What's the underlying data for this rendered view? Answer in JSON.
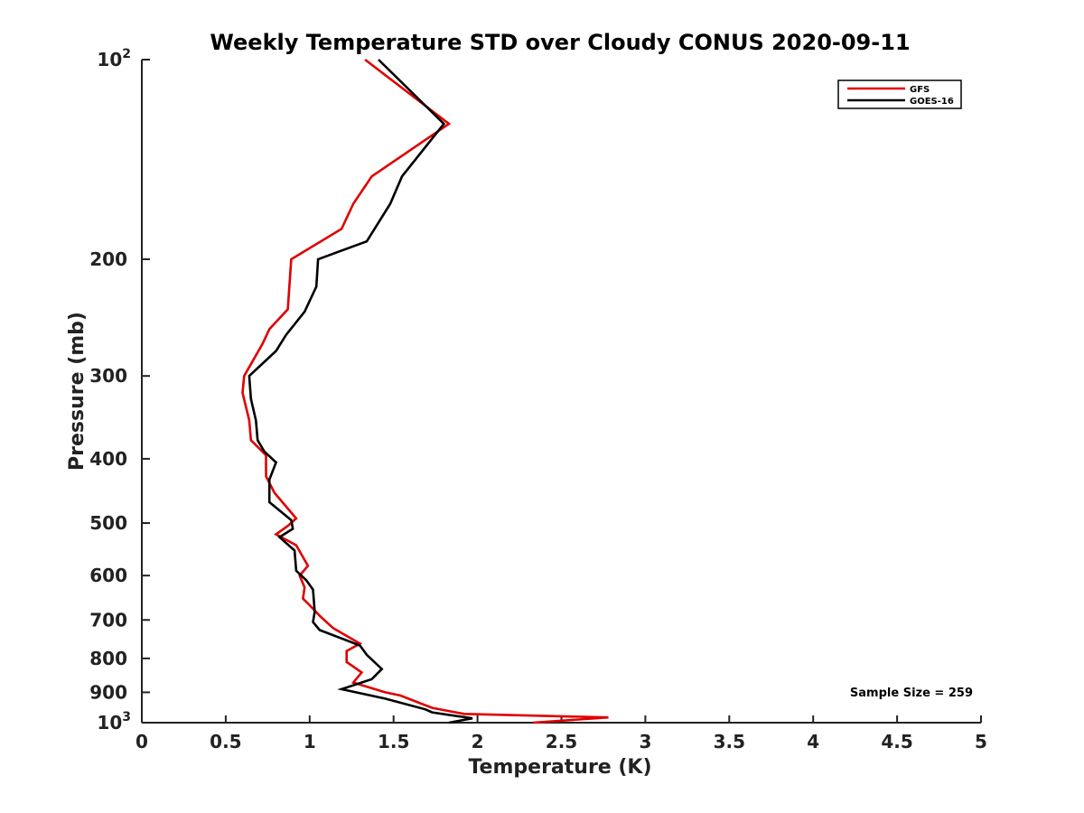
{
  "chart_data": {
    "type": "line",
    "title": "Weekly Temperature STD over Cloudy CONUS 2020-09-11",
    "xlabel": "Temperature (K)",
    "ylabel": "Pressure (mb)",
    "xlim": [
      0,
      5
    ],
    "ylim": [
      1000,
      100
    ],
    "yscale": "log",
    "grid": false,
    "legend_position": "top-right",
    "x_ticks": [
      0,
      0.5,
      1,
      1.5,
      2,
      2.5,
      3,
      3.5,
      4,
      4.5,
      5
    ],
    "x_tick_labels": [
      "0",
      "0.5",
      "1",
      "1.5",
      "2",
      "2.5",
      "3",
      "3.5",
      "4",
      "4.5",
      "5"
    ],
    "y_ticks": [
      {
        "value": 100,
        "base": "10",
        "exp": "2"
      },
      {
        "value": 200,
        "label": "200"
      },
      {
        "value": 300,
        "label": "300"
      },
      {
        "value": 400,
        "label": "400"
      },
      {
        "value": 500,
        "label": "500"
      },
      {
        "value": 600,
        "label": "600"
      },
      {
        "value": 700,
        "label": "700"
      },
      {
        "value": 800,
        "label": "800"
      },
      {
        "value": 900,
        "label": "900"
      },
      {
        "value": 1000,
        "base": "10",
        "exp": "3"
      }
    ],
    "annotation": "Sample Size = 259",
    "series": [
      {
        "name": "GFS",
        "color": "#e00000",
        "points": [
          [
            1.33,
            100
          ],
          [
            1.83,
            125
          ],
          [
            1.37,
            150
          ],
          [
            1.26,
            165
          ],
          [
            1.19,
            180
          ],
          [
            0.89,
            200
          ],
          [
            0.87,
            238
          ],
          [
            0.76,
            255
          ],
          [
            0.72,
            268
          ],
          [
            0.61,
            300
          ],
          [
            0.6,
            318
          ],
          [
            0.64,
            350
          ],
          [
            0.65,
            375
          ],
          [
            0.74,
            395
          ],
          [
            0.74,
            425
          ],
          [
            0.79,
            450
          ],
          [
            0.92,
            492
          ],
          [
            0.87,
            505
          ],
          [
            0.8,
            520
          ],
          [
            0.92,
            540
          ],
          [
            0.99,
            580
          ],
          [
            0.94,
            600
          ],
          [
            0.97,
            625
          ],
          [
            0.96,
            650
          ],
          [
            1.0,
            665
          ],
          [
            1.06,
            690
          ],
          [
            1.14,
            720
          ],
          [
            1.3,
            760
          ],
          [
            1.22,
            780
          ],
          [
            1.22,
            810
          ],
          [
            1.31,
            840
          ],
          [
            1.26,
            870
          ],
          [
            1.45,
            900
          ],
          [
            1.54,
            910
          ],
          [
            1.73,
            950
          ],
          [
            1.92,
            970
          ],
          [
            2.78,
            982
          ],
          [
            2.33,
            1000
          ]
        ]
      },
      {
        "name": "GOES-16",
        "color": "#000000",
        "points": [
          [
            1.41,
            100
          ],
          [
            1.8,
            125
          ],
          [
            1.55,
            150
          ],
          [
            1.48,
            165
          ],
          [
            1.34,
            188
          ],
          [
            1.05,
            200
          ],
          [
            1.04,
            220
          ],
          [
            0.97,
            240
          ],
          [
            0.86,
            260
          ],
          [
            0.8,
            275
          ],
          [
            0.64,
            300
          ],
          [
            0.65,
            325
          ],
          [
            0.68,
            350
          ],
          [
            0.69,
            375
          ],
          [
            0.73,
            390
          ],
          [
            0.8,
            405
          ],
          [
            0.76,
            430
          ],
          [
            0.76,
            465
          ],
          [
            0.89,
            495
          ],
          [
            0.9,
            510
          ],
          [
            0.82,
            525
          ],
          [
            0.91,
            550
          ],
          [
            0.92,
            590
          ],
          [
            0.98,
            610
          ],
          [
            1.02,
            630
          ],
          [
            1.03,
            680
          ],
          [
            1.02,
            705
          ],
          [
            1.06,
            725
          ],
          [
            1.3,
            765
          ],
          [
            1.34,
            790
          ],
          [
            1.43,
            830
          ],
          [
            1.37,
            860
          ],
          [
            1.19,
            890
          ],
          [
            1.45,
            920
          ],
          [
            1.69,
            955
          ],
          [
            1.73,
            965
          ],
          [
            1.97,
            985
          ],
          [
            1.83,
            1000
          ]
        ]
      }
    ]
  }
}
